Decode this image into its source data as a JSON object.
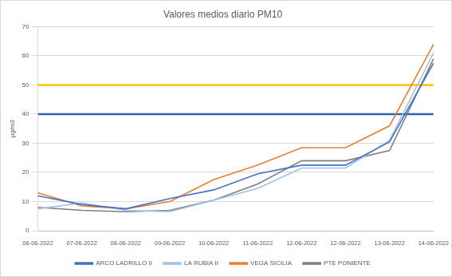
{
  "chart_data": {
    "type": "line",
    "title": "Valores medios diario PM10",
    "y_label": "µg/m3",
    "categories": [
      "06-06-2022",
      "07-06-2022",
      "08-06-2022",
      "09-06-2022",
      "10-06-2022",
      "11-06-2022",
      "12-06-2022",
      "12-06-2022",
      "13-06-2022",
      "14-06-2022"
    ],
    "series": [
      {
        "name": "ARCO LADRILLO II",
        "color": "#4472c4",
        "values": [
          12,
          9,
          7.5,
          11,
          14,
          19.5,
          22.5,
          22.5,
          30.5,
          57.5
        ]
      },
      {
        "name": "LA RUBIA II",
        "color": "#9dc3e6",
        "values": [
          7.5,
          9.5,
          7,
          6.5,
          10.5,
          14.5,
          21.5,
          21.5,
          31,
          61
        ]
      },
      {
        "name": "VEGA SICILIA",
        "color": "#ed7d31",
        "values": [
          13,
          8.5,
          7.5,
          10,
          17.5,
          22.5,
          28.5,
          28.5,
          36,
          64
        ]
      },
      {
        "name": "PTE PONIENTE",
        "color": "#7f7f7f",
        "values": [
          8,
          7,
          6.5,
          7,
          10.5,
          16,
          24,
          24,
          27.5,
          59
        ]
      }
    ],
    "reference_lines": [
      {
        "value": 40,
        "color": "#2f5fb3"
      },
      {
        "value": 50,
        "color": "#ffc000"
      }
    ],
    "ylim": [
      0,
      70
    ],
    "yticks": [
      0,
      10,
      20,
      30,
      40,
      50,
      60,
      70
    ],
    "grid": true,
    "legend": "bottom",
    "marker": "none",
    "line_style": "solid"
  }
}
